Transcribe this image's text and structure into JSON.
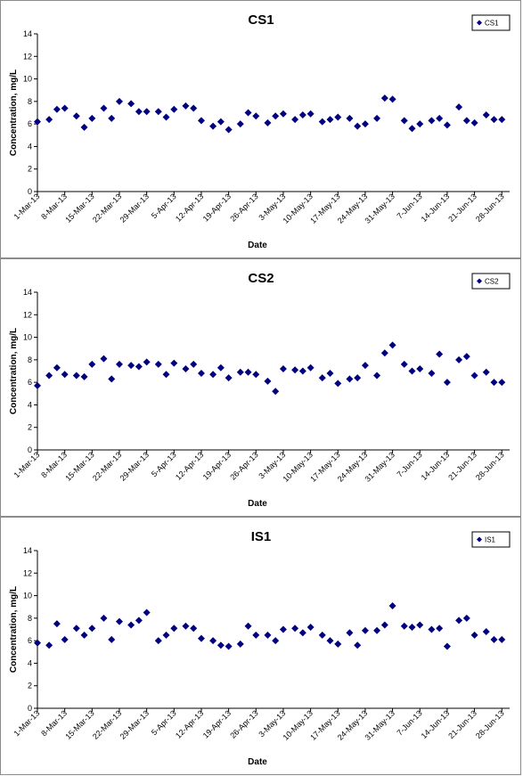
{
  "colors": {
    "marker": "#000080",
    "axis": "#000000",
    "border": "#8c8c8c"
  },
  "chart_data": [
    {
      "type": "scatter",
      "title": "CS1",
      "xlabel": "Date",
      "ylabel": "Concentration, mg/L",
      "ylim": [
        0,
        14
      ],
      "yticks": [
        "0",
        "2",
        "4",
        "6",
        "8",
        "10",
        "12",
        "14"
      ],
      "xlim": [
        "2013-03-01",
        "2013-06-30"
      ],
      "xtick_labels": [
        "1-Mar-13",
        "8-Mar-13",
        "15-Mar-13",
        "22-Mar-13",
        "29-Mar-13",
        "5-Apr-13",
        "12-Apr-13",
        "19-Apr-13",
        "26-Apr-13",
        "3-May-13",
        "10-May-13",
        "17-May-13",
        "24-May-13",
        "31-May-13",
        "7-Jun-13",
        "14-Jun-13",
        "21-Jun-13",
        "28-Jun-13"
      ],
      "legend": "top-right",
      "grid": false,
      "series": [
        {
          "name": "CS1",
          "x": [
            "2013-03-01",
            "2013-03-04",
            "2013-03-06",
            "2013-03-08",
            "2013-03-11",
            "2013-03-13",
            "2013-03-15",
            "2013-03-18",
            "2013-03-20",
            "2013-03-22",
            "2013-03-25",
            "2013-03-27",
            "2013-03-29",
            "2013-04-01",
            "2013-04-03",
            "2013-04-05",
            "2013-04-08",
            "2013-04-10",
            "2013-04-12",
            "2013-04-15",
            "2013-04-17",
            "2013-04-19",
            "2013-04-22",
            "2013-04-24",
            "2013-04-26",
            "2013-04-29",
            "2013-05-01",
            "2013-05-03",
            "2013-05-06",
            "2013-05-08",
            "2013-05-10",
            "2013-05-13",
            "2013-05-15",
            "2013-05-17",
            "2013-05-20",
            "2013-05-22",
            "2013-05-24",
            "2013-05-27",
            "2013-05-29",
            "2013-05-31",
            "2013-06-03",
            "2013-06-05",
            "2013-06-07",
            "2013-06-10",
            "2013-06-12",
            "2013-06-14",
            "2013-06-17",
            "2013-06-19",
            "2013-06-21",
            "2013-06-24",
            "2013-06-26",
            "2013-06-28"
          ],
          "y": [
            6.2,
            6.4,
            7.3,
            7.4,
            6.7,
            5.7,
            6.5,
            7.4,
            6.5,
            8.0,
            7.8,
            7.1,
            7.1,
            7.1,
            6.6,
            7.3,
            7.6,
            7.4,
            6.3,
            5.8,
            6.2,
            5.5,
            6.0,
            7.0,
            6.7,
            6.1,
            6.7,
            6.9,
            6.4,
            6.8,
            6.9,
            6.2,
            6.4,
            6.6,
            6.5,
            5.8,
            6.0,
            6.5,
            8.3,
            8.2,
            6.3,
            5.6,
            6.0,
            6.3,
            6.5,
            5.9,
            7.5,
            6.3,
            6.1,
            6.8,
            6.4,
            6.4
          ]
        }
      ]
    },
    {
      "type": "scatter",
      "title": "CS2",
      "xlabel": "Date",
      "ylabel": "Concentration, mg/L",
      "ylim": [
        0,
        14
      ],
      "yticks": [
        "0",
        "2",
        "4",
        "6",
        "8",
        "10",
        "12",
        "14"
      ],
      "xlim": [
        "2013-03-01",
        "2013-06-30"
      ],
      "xtick_labels": [
        "1-Mar-13",
        "8-Mar-13",
        "15-Mar-13",
        "22-Mar-13",
        "29-Mar-13",
        "5-Apr-13",
        "12-Apr-13",
        "19-Apr-13",
        "26-Apr-13",
        "3-May-13",
        "10-May-13",
        "17-May-13",
        "24-May-13",
        "31-May-13",
        "7-Jun-13",
        "14-Jun-13",
        "21-Jun-13",
        "28-Jun-13"
      ],
      "legend": "top-right",
      "grid": false,
      "series": [
        {
          "name": "CS2",
          "x": [
            "2013-03-01",
            "2013-03-04",
            "2013-03-06",
            "2013-03-08",
            "2013-03-11",
            "2013-03-13",
            "2013-03-15",
            "2013-03-18",
            "2013-03-20",
            "2013-03-22",
            "2013-03-25",
            "2013-03-27",
            "2013-03-29",
            "2013-04-01",
            "2013-04-03",
            "2013-04-05",
            "2013-04-08",
            "2013-04-10",
            "2013-04-12",
            "2013-04-15",
            "2013-04-17",
            "2013-04-19",
            "2013-04-22",
            "2013-04-24",
            "2013-04-26",
            "2013-04-29",
            "2013-05-01",
            "2013-05-03",
            "2013-05-06",
            "2013-05-08",
            "2013-05-10",
            "2013-05-13",
            "2013-05-15",
            "2013-05-17",
            "2013-05-20",
            "2013-05-22",
            "2013-05-24",
            "2013-05-27",
            "2013-05-29",
            "2013-05-31",
            "2013-06-03",
            "2013-06-05",
            "2013-06-07",
            "2013-06-10",
            "2013-06-12",
            "2013-06-14",
            "2013-06-17",
            "2013-06-19",
            "2013-06-21",
            "2013-06-24",
            "2013-06-26",
            "2013-06-28"
          ],
          "y": [
            5.7,
            6.6,
            7.3,
            6.7,
            6.6,
            6.5,
            7.6,
            8.1,
            6.3,
            7.6,
            7.5,
            7.4,
            7.8,
            7.6,
            6.7,
            7.7,
            7.2,
            7.6,
            6.8,
            6.7,
            7.3,
            6.4,
            6.9,
            6.9,
            6.7,
            6.1,
            5.2,
            7.2,
            7.1,
            7.0,
            7.3,
            6.4,
            6.8,
            5.9,
            6.3,
            6.4,
            7.5,
            6.6,
            8.6,
            9.3,
            7.6,
            7.0,
            7.2,
            6.8,
            8.5,
            6.0,
            8.0,
            8.3,
            6.6,
            6.9,
            6.0,
            6.0
          ]
        }
      ]
    },
    {
      "type": "scatter",
      "title": "IS1",
      "xlabel": "Date",
      "ylabel": "Concentration, mg/L",
      "ylim": [
        0,
        14
      ],
      "yticks": [
        "0",
        "2",
        "4",
        "6",
        "8",
        "10",
        "12",
        "14"
      ],
      "xlim": [
        "2013-03-01",
        "2013-06-30"
      ],
      "xtick_labels": [
        "1-Mar-13",
        "8-Mar-13",
        "15-Mar-13",
        "22-Mar-13",
        "29-Mar-13",
        "5-Apr-13",
        "12-Apr-13",
        "19-Apr-13",
        "26-Apr-13",
        "3-May-13",
        "10-May-13",
        "17-May-13",
        "24-May-13",
        "31-May-13",
        "7-Jun-13",
        "14-Jun-13",
        "21-Jun-13",
        "28-Jun-13"
      ],
      "legend": "top-right",
      "grid": false,
      "series": [
        {
          "name": "IS1",
          "x": [
            "2013-03-01",
            "2013-03-04",
            "2013-03-06",
            "2013-03-08",
            "2013-03-11",
            "2013-03-13",
            "2013-03-15",
            "2013-03-18",
            "2013-03-20",
            "2013-03-22",
            "2013-03-25",
            "2013-03-27",
            "2013-03-29",
            "2013-04-01",
            "2013-04-03",
            "2013-04-05",
            "2013-04-08",
            "2013-04-10",
            "2013-04-12",
            "2013-04-15",
            "2013-04-17",
            "2013-04-19",
            "2013-04-22",
            "2013-04-24",
            "2013-04-26",
            "2013-04-29",
            "2013-05-01",
            "2013-05-03",
            "2013-05-06",
            "2013-05-08",
            "2013-05-10",
            "2013-05-13",
            "2013-05-15",
            "2013-05-17",
            "2013-05-20",
            "2013-05-22",
            "2013-05-24",
            "2013-05-27",
            "2013-05-29",
            "2013-05-31",
            "2013-06-03",
            "2013-06-05",
            "2013-06-07",
            "2013-06-10",
            "2013-06-12",
            "2013-06-14",
            "2013-06-17",
            "2013-06-19",
            "2013-06-21",
            "2013-06-24",
            "2013-06-26",
            "2013-06-28"
          ],
          "y": [
            5.8,
            5.6,
            7.5,
            6.1,
            7.1,
            6.5,
            7.1,
            8.0,
            6.1,
            7.7,
            7.4,
            7.8,
            8.5,
            6.0,
            6.5,
            7.1,
            7.3,
            7.1,
            6.2,
            6.0,
            5.6,
            5.5,
            5.7,
            7.3,
            6.5,
            6.5,
            6.0,
            7.0,
            7.1,
            6.7,
            7.2,
            6.5,
            6.0,
            5.7,
            6.7,
            5.6,
            6.9,
            6.9,
            7.4,
            9.1,
            7.3,
            7.2,
            7.4,
            7.0,
            7.1,
            5.5,
            7.8,
            8.0,
            6.5,
            6.8,
            6.1,
            6.1
          ]
        }
      ]
    }
  ]
}
